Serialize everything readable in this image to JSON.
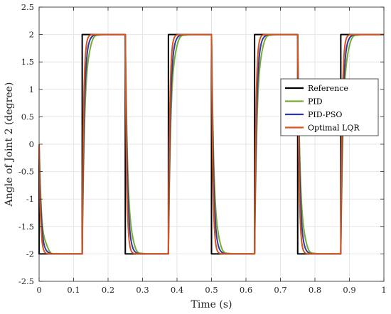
{
  "chart_data": {
    "type": "line",
    "title": "",
    "xlabel": "Time (s)",
    "ylabel": "Angle of Joint 2 (degree)",
    "xlim": [
      0,
      1
    ],
    "ylim": [
      -2.5,
      2.5
    ],
    "xticks": [
      0,
      0.1,
      0.2,
      0.3,
      0.4,
      0.5,
      0.6,
      0.7,
      0.8,
      0.9,
      1
    ],
    "xtick_labels": [
      "0",
      "0.1",
      "0.2",
      "0.3",
      "0.4",
      "0.5",
      "0.6",
      "0.7",
      "0.8",
      "0.9",
      "1"
    ],
    "yticks": [
      -2.5,
      -2,
      -1.5,
      -1,
      -0.5,
      0,
      0.5,
      1,
      1.5,
      2,
      2.5
    ],
    "ytick_labels": [
      "-2.5",
      "-2",
      "-1.5",
      "-1",
      "-0.5",
      "0",
      "0.5",
      "1",
      "1.5",
      "2",
      "2.5"
    ],
    "grid": true,
    "legend_position": "center-right",
    "square_wave": {
      "amplitude": 2,
      "half_period": 0.125,
      "initial_value": 0,
      "first_level": -2
    },
    "series": [
      {
        "name": "Reference",
        "color": "#000000",
        "response": "ideal"
      },
      {
        "name": "PID",
        "color": "#77AC30",
        "response": "underdamped",
        "time_constant": 0.008,
        "overshoot": 0.27,
        "ring_frequency_hz": 32,
        "ring_decay": 85
      },
      {
        "name": "PID-PSO",
        "color": "#2E3A9E",
        "response": "underdamped",
        "time_constant": 0.006,
        "overshoot": 0.09,
        "ring_frequency_hz": 28,
        "ring_decay": 110
      },
      {
        "name": "Optimal LQR",
        "color": "#D9531E",
        "response": "first-order",
        "time_constant": 0.004
      }
    ]
  }
}
